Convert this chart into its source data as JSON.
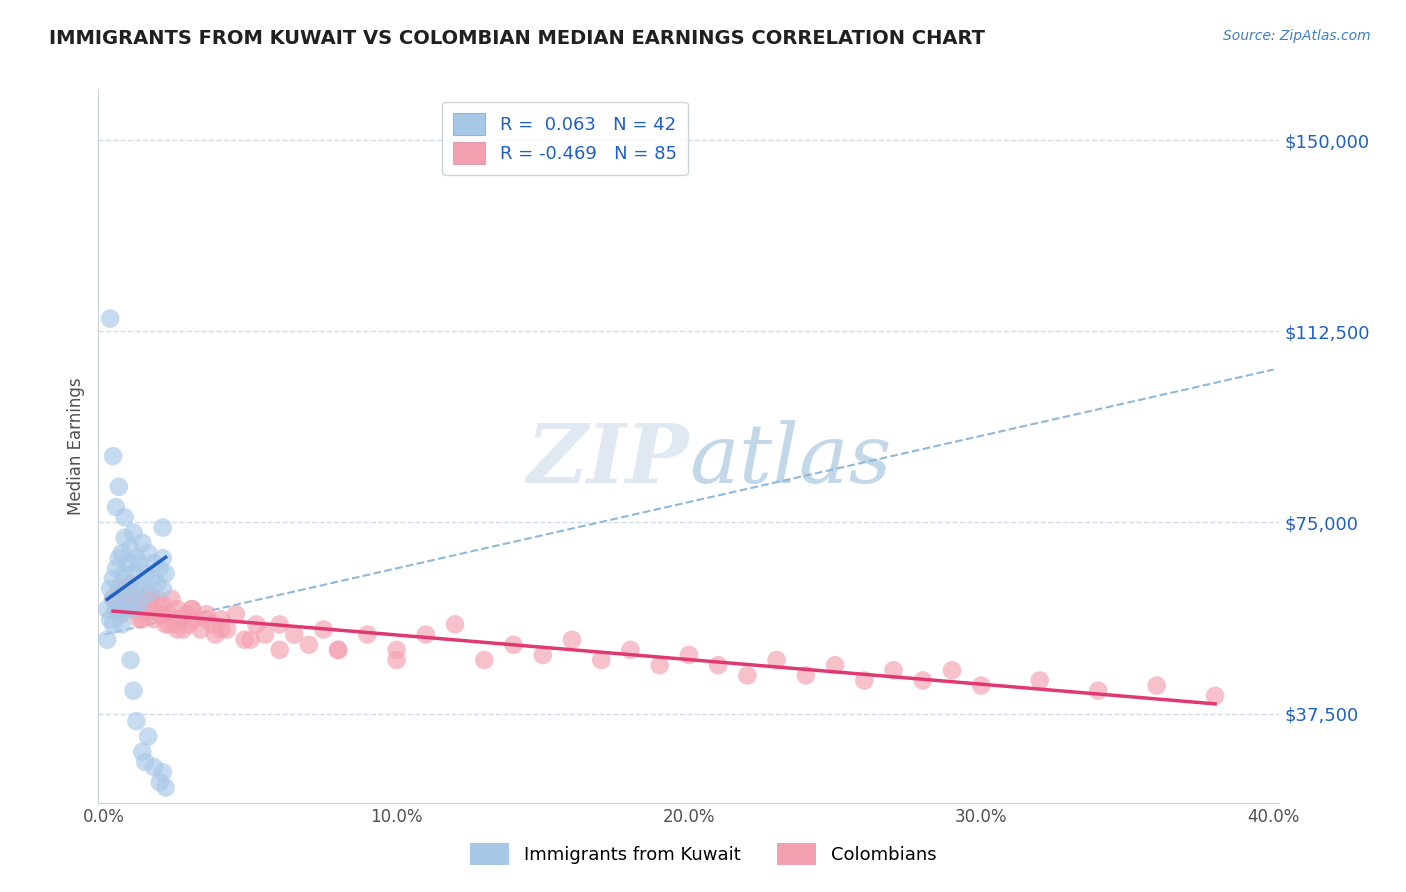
{
  "title": "IMMIGRANTS FROM KUWAIT VS COLOMBIAN MEDIAN EARNINGS CORRELATION CHART",
  "source": "Source: ZipAtlas.com",
  "ylabel": "Median Earnings",
  "xlim": [
    -0.002,
    0.402
  ],
  "ylim": [
    20000,
    160000
  ],
  "yticks": [
    37500,
    75000,
    112500,
    150000
  ],
  "ytick_labels": [
    "$37,500",
    "$75,000",
    "$112,500",
    "$150,000"
  ],
  "xticks": [
    0.0,
    0.1,
    0.2,
    0.3,
    0.4
  ],
  "xtick_labels": [
    "0.0%",
    "10.0%",
    "20.0%",
    "30.0%",
    "40.0%"
  ],
  "kuwait_R": 0.063,
  "kuwait_N": 42,
  "colombian_R": -0.469,
  "colombian_N": 85,
  "kuwait_color": "#a8c8e8",
  "colombian_color": "#f4a0b0",
  "kuwait_line_color": "#2060c0",
  "colombian_line_color": "#e03870",
  "dash_line_color": "#90b8d8",
  "background_color": "#ffffff",
  "grid_color": "#d0dce8",
  "title_color": "#202020",
  "source_color": "#4080c0",
  "legend_text_color": "#2060c0",
  "kuwait_scatter_x": [
    0.001,
    0.001,
    0.002,
    0.002,
    0.003,
    0.003,
    0.003,
    0.004,
    0.004,
    0.005,
    0.005,
    0.005,
    0.006,
    0.006,
    0.006,
    0.007,
    0.007,
    0.007,
    0.008,
    0.008,
    0.009,
    0.009,
    0.01,
    0.01,
    0.01,
    0.011,
    0.011,
    0.012,
    0.012,
    0.013,
    0.013,
    0.014,
    0.015,
    0.015,
    0.016,
    0.017,
    0.018,
    0.019,
    0.02,
    0.02,
    0.02,
    0.021
  ],
  "kuwait_scatter_y": [
    58000,
    52000,
    62000,
    56000,
    60000,
    55000,
    64000,
    58000,
    66000,
    57000,
    61000,
    68000,
    55000,
    63000,
    69000,
    58000,
    65000,
    72000,
    60000,
    67000,
    62000,
    70000,
    58000,
    65000,
    73000,
    62000,
    68000,
    59000,
    67000,
    63000,
    71000,
    65000,
    61000,
    69000,
    64000,
    67000,
    63000,
    66000,
    62000,
    68000,
    74000,
    65000
  ],
  "kuwait_outlier_x": [
    0.002,
    0.003,
    0.004,
    0.005,
    0.007,
    0.009,
    0.01,
    0.011,
    0.013,
    0.014,
    0.015,
    0.017,
    0.019,
    0.02,
    0.021
  ],
  "kuwait_outlier_y": [
    115000,
    88000,
    78000,
    82000,
    76000,
    48000,
    42000,
    36000,
    30000,
    28000,
    33000,
    27000,
    24000,
    26000,
    23000
  ],
  "colombian_scatter_x": [
    0.003,
    0.004,
    0.005,
    0.006,
    0.007,
    0.008,
    0.009,
    0.01,
    0.011,
    0.012,
    0.013,
    0.014,
    0.015,
    0.016,
    0.017,
    0.018,
    0.019,
    0.02,
    0.021,
    0.022,
    0.023,
    0.024,
    0.025,
    0.026,
    0.027,
    0.028,
    0.029,
    0.03,
    0.031,
    0.033,
    0.035,
    0.037,
    0.038,
    0.04,
    0.042,
    0.045,
    0.048,
    0.052,
    0.055,
    0.06,
    0.065,
    0.07,
    0.075,
    0.08,
    0.09,
    0.1,
    0.11,
    0.12,
    0.13,
    0.14,
    0.15,
    0.16,
    0.17,
    0.18,
    0.19,
    0.2,
    0.21,
    0.22,
    0.23,
    0.24,
    0.25,
    0.26,
    0.27,
    0.28,
    0.29,
    0.3,
    0.32,
    0.34,
    0.36,
    0.38,
    0.007,
    0.01,
    0.013,
    0.016,
    0.019,
    0.022,
    0.025,
    0.03,
    0.035,
    0.04,
    0.05,
    0.06,
    0.08,
    0.1
  ],
  "colombian_scatter_y": [
    60000,
    58000,
    62000,
    57000,
    61000,
    59000,
    63000,
    60000,
    58000,
    56000,
    59000,
    57000,
    61000,
    58000,
    56000,
    60000,
    57000,
    59000,
    55000,
    57000,
    60000,
    55000,
    58000,
    56000,
    54000,
    57000,
    55000,
    58000,
    56000,
    54000,
    57000,
    55000,
    53000,
    56000,
    54000,
    57000,
    52000,
    55000,
    53000,
    50000,
    53000,
    51000,
    54000,
    50000,
    53000,
    50000,
    53000,
    55000,
    48000,
    51000,
    49000,
    52000,
    48000,
    50000,
    47000,
    49000,
    47000,
    45000,
    48000,
    45000,
    47000,
    44000,
    46000,
    44000,
    46000,
    43000,
    44000,
    42000,
    43000,
    41000,
    62000,
    58000,
    56000,
    60000,
    57000,
    55000,
    54000,
    58000,
    56000,
    54000,
    52000,
    55000,
    50000,
    48000
  ]
}
